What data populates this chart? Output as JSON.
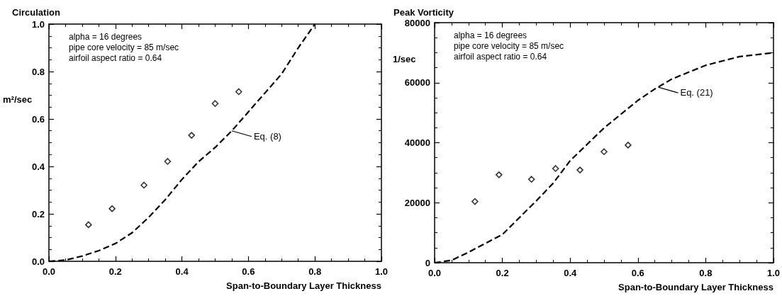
{
  "chart_data": [
    {
      "type": "scatter",
      "title": "Circulation",
      "xlabel": "Span-to-Boundary Layer Thickness",
      "ylabel": "m²/sec",
      "annotations": [
        "alpha = 16 degrees",
        "pipe core velocity = 85 m/sec",
        "airfoil aspect ratio = 0.64",
        {
          "text": "Eq. (8)",
          "x": 0.55,
          "y": 0.55
        }
      ],
      "xlim": [
        0,
        1
      ],
      "xticks": [
        {
          "value": 0,
          "label": "0.0"
        },
        {
          "value": 0.2,
          "label": "0.2"
        },
        {
          "value": 0.4,
          "label": "0.4"
        },
        {
          "value": 0.6,
          "label": "0.6"
        },
        {
          "value": 0.8,
          "label": "0.8"
        },
        {
          "value": 1,
          "label": "1.0"
        }
      ],
      "ylim": [
        0,
        1
      ],
      "yticks": [
        {
          "value": 0,
          "label": "0.0"
        },
        {
          "value": 0.2,
          "label": "0.2"
        },
        {
          "value": 0.4,
          "label": "0.4"
        },
        {
          "value": 0.6,
          "label": "0.6"
        },
        {
          "value": 0.8,
          "label": "0.8"
        },
        {
          "value": 1,
          "label": "1.0"
        }
      ],
      "grid": false,
      "series": [
        {
          "type": "scatter",
          "color": "#000000",
          "marker": "diamond",
          "x": [
            0.119,
            0.19,
            0.286,
            0.357,
            0.429,
            0.5,
            0.571
          ],
          "values": [
            0.154,
            0.222,
            0.321,
            0.421,
            0.531,
            0.665,
            0.715
          ]
        },
        {
          "type": "line",
          "color": "#000000",
          "marker": "none",
          "line_style": "dashed",
          "x": [
            0,
            0.05,
            0.1,
            0.15,
            0.2,
            0.25,
            0.3,
            0.35,
            0.4,
            0.45,
            0.5,
            0.55,
            0.6,
            0.65,
            0.7,
            0.75,
            0.8
          ],
          "values": [
            0,
            0.005,
            0.022,
            0.045,
            0.075,
            0.12,
            0.185,
            0.26,
            0.345,
            0.42,
            0.48,
            0.55,
            0.63,
            0.71,
            0.79,
            0.9,
            1.0
          ]
        }
      ]
    },
    {
      "type": "scatter",
      "title": "Peak Vorticity",
      "xlabel": "Span-to-Boundary Layer Thickness",
      "ylabel": "1/sec",
      "annotations": [
        "alpha = 16 degrees",
        "pipe core velocity = 85 m/sec",
        "airfoil aspect ratio = 0.64",
        {
          "text": "Eq. (21)",
          "x": 0.66,
          "y": 58500
        }
      ],
      "xlim": [
        0,
        1
      ],
      "xticks": [
        {
          "value": 0,
          "label": "0.0"
        },
        {
          "value": 0.2,
          "label": "0.2"
        },
        {
          "value": 0.4,
          "label": "0.4"
        },
        {
          "value": 0.6,
          "label": "0.6"
        },
        {
          "value": 0.8,
          "label": "0.8"
        },
        {
          "value": 1,
          "label": "1.0"
        }
      ],
      "ylim": [
        0,
        80000
      ],
      "yticks": [
        0,
        20000,
        40000,
        60000,
        80000
      ],
      "grid": false,
      "series": [
        {
          "type": "scatter",
          "color": "#000000",
          "marker": "diamond",
          "x": [
            0.119,
            0.19,
            0.286,
            0.357,
            0.429,
            0.5,
            0.571
          ],
          "values": [
            20400,
            29300,
            27800,
            31400,
            30900,
            37000,
            39200
          ]
        },
        {
          "type": "line",
          "color": "#000000",
          "marker": "none",
          "line_style": "dashed",
          "x": [
            0,
            0.05,
            0.1,
            0.2,
            0.3,
            0.35,
            0.4,
            0.5,
            0.6,
            0.65,
            0.7,
            0.8,
            0.9,
            1.0
          ],
          "values": [
            0,
            800,
            3500,
            9400,
            20600,
            26500,
            34000,
            44900,
            54100,
            57900,
            61200,
            65800,
            68700,
            70000
          ]
        }
      ]
    }
  ]
}
